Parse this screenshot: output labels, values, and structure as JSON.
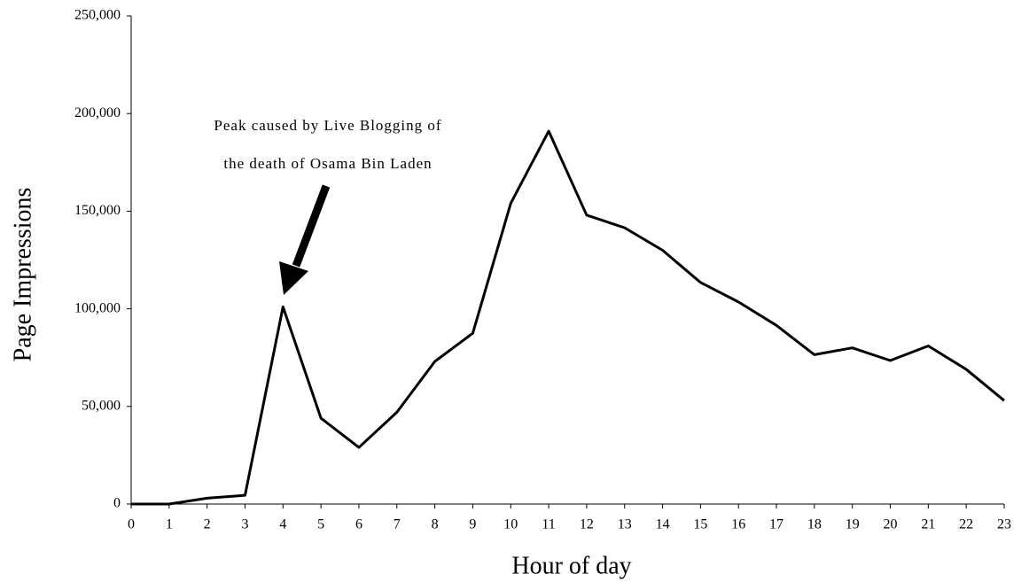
{
  "chart_data": {
    "type": "line",
    "x_label": "Hour of day",
    "y_label": "Page Impressions",
    "annotation": [
      "Peak caused by Live Blogging of",
      "the death of Osama Bin Laden"
    ],
    "x": [
      0,
      1,
      2,
      3,
      4,
      5,
      6,
      7,
      8,
      9,
      10,
      11,
      12,
      13,
      14,
      15,
      16,
      17,
      18,
      19,
      20,
      21,
      22,
      23
    ],
    "values": [
      0,
      0,
      3000,
      4500,
      101000,
      44000,
      29000,
      47000,
      73000,
      87500,
      154000,
      191000,
      148000,
      141500,
      130000,
      113500,
      103500,
      91500,
      76500,
      80000,
      73500,
      81000,
      69000,
      53000
    ],
    "color": "#000000",
    "xlim": [
      0,
      23
    ],
    "xticks": [
      0,
      1,
      2,
      3,
      4,
      5,
      6,
      7,
      8,
      9,
      10,
      11,
      12,
      13,
      14,
      15,
      16,
      17,
      18,
      19,
      20,
      21,
      22,
      23
    ],
    "ylim": [
      0,
      250000
    ],
    "yticks": [
      0,
      {
        "value": 50000,
        "label": "50,000"
      },
      {
        "value": 100000,
        "label": "100,000"
      },
      {
        "value": 150000,
        "label": "150,000"
      },
      {
        "value": 200000,
        "label": "200,000"
      },
      {
        "value": 250000,
        "label": "250,000"
      }
    ],
    "grid": false
  }
}
